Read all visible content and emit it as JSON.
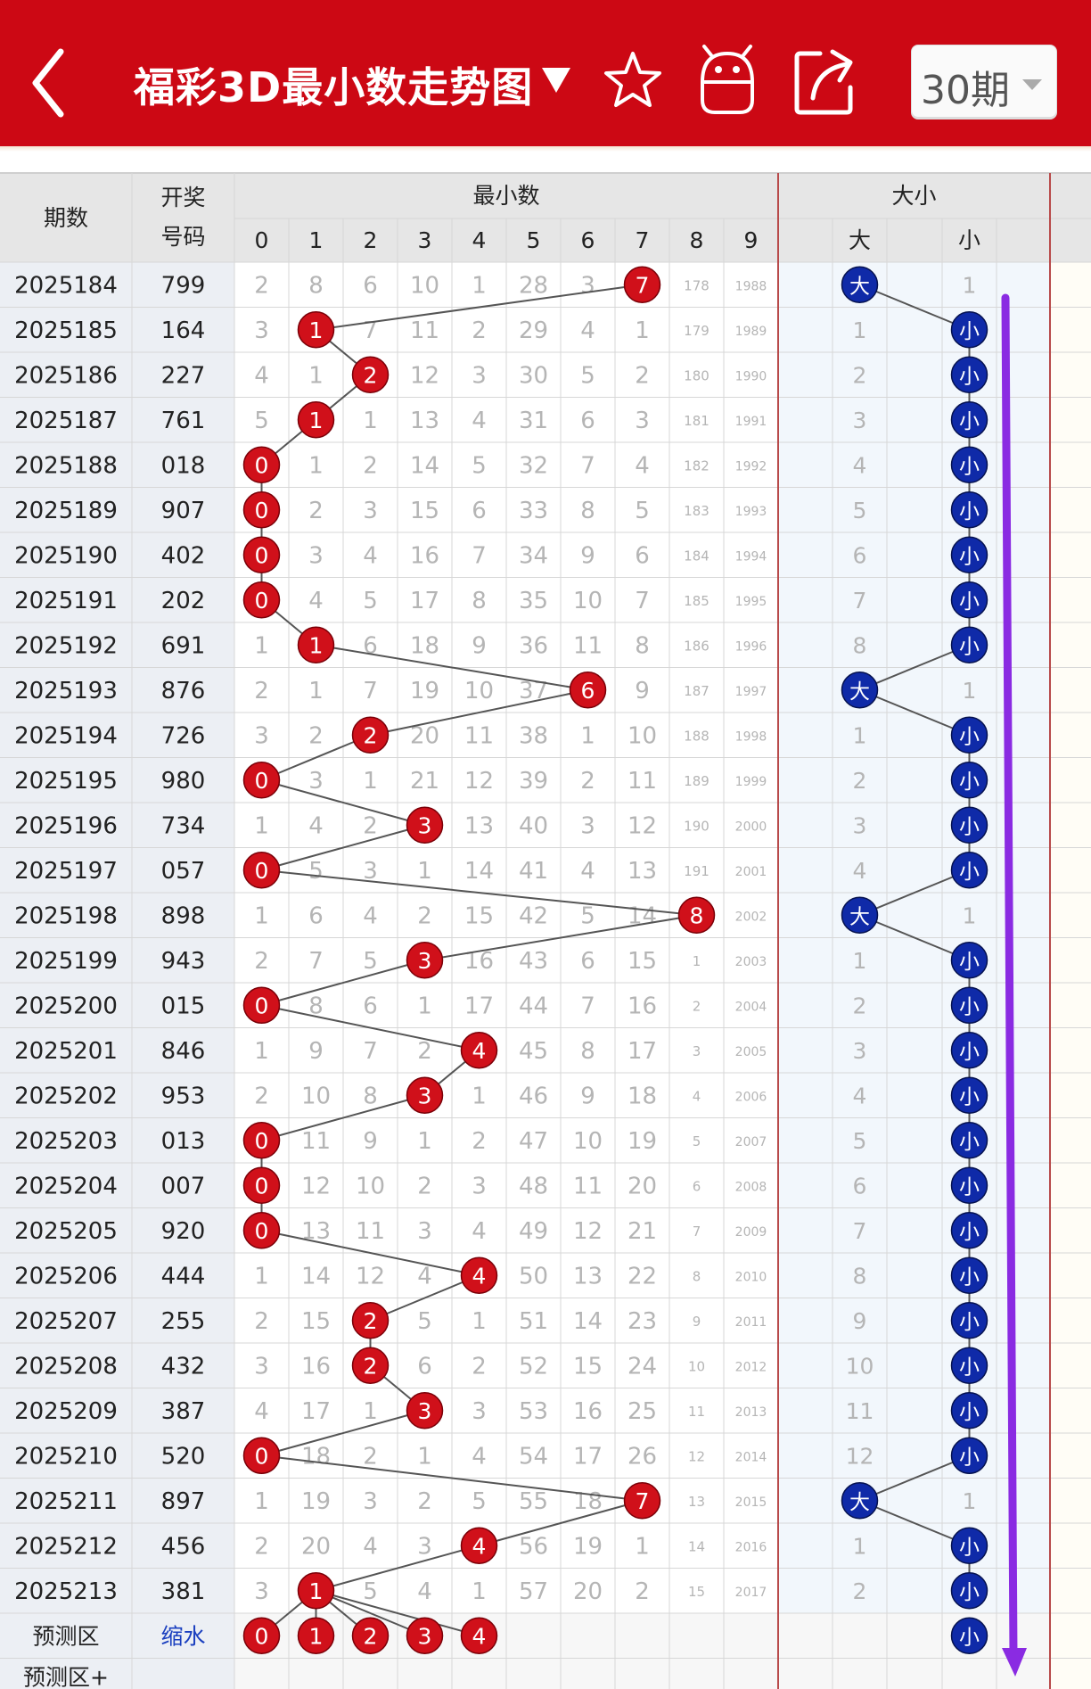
{
  "header": {
    "title": "福彩3D最小数走势图",
    "period_selector": "30期",
    "back_icon": "back-arrow-icon",
    "favorite_icon": "star-icon",
    "android_icon": "android-robot-icon",
    "share_icon": "share-icon",
    "dropdown_icon": "triangle-down-icon",
    "bg_color": "#cc0814"
  },
  "table": {
    "header": {
      "issue": "期数",
      "draw_line1": "开奖",
      "draw_line2": "号码",
      "min_group": "最小数",
      "size_group": "大小",
      "digit_cols": [
        "0",
        "1",
        "2",
        "3",
        "4",
        "5",
        "6",
        "7",
        "8",
        "9"
      ],
      "big": "大",
      "small": "小"
    },
    "rows": [
      {
        "issue": "2025184",
        "draw": "799",
        "min": 7,
        "miss": [
          "2",
          "8",
          "6",
          "10",
          "1",
          "28",
          "3",
          "7",
          "178",
          "1988"
        ],
        "size": "大",
        "sizemiss": [
          "大",
          "1"
        ]
      },
      {
        "issue": "2025185",
        "draw": "164",
        "min": 1,
        "miss": [
          "3",
          "1",
          "7",
          "11",
          "2",
          "29",
          "4",
          "1",
          "179",
          "1989"
        ],
        "size": "小",
        "sizemiss": [
          "1",
          "小"
        ]
      },
      {
        "issue": "2025186",
        "draw": "227",
        "min": 2,
        "miss": [
          "4",
          "1",
          "2",
          "12",
          "3",
          "30",
          "5",
          "2",
          "180",
          "1990"
        ],
        "size": "小",
        "sizemiss": [
          "2",
          "小"
        ]
      },
      {
        "issue": "2025187",
        "draw": "761",
        "min": 1,
        "miss": [
          "5",
          "1",
          "1",
          "13",
          "4",
          "31",
          "6",
          "3",
          "181",
          "1991"
        ],
        "size": "小",
        "sizemiss": [
          "3",
          "小"
        ]
      },
      {
        "issue": "2025188",
        "draw": "018",
        "min": 0,
        "miss": [
          "0",
          "1",
          "2",
          "14",
          "5",
          "32",
          "7",
          "4",
          "182",
          "1992"
        ],
        "size": "小",
        "sizemiss": [
          "4",
          "小"
        ]
      },
      {
        "issue": "2025189",
        "draw": "907",
        "min": 0,
        "miss": [
          "0",
          "2",
          "3",
          "15",
          "6",
          "33",
          "8",
          "5",
          "183",
          "1993"
        ],
        "size": "小",
        "sizemiss": [
          "5",
          "小"
        ]
      },
      {
        "issue": "2025190",
        "draw": "402",
        "min": 0,
        "miss": [
          "0",
          "3",
          "4",
          "16",
          "7",
          "34",
          "9",
          "6",
          "184",
          "1994"
        ],
        "size": "小",
        "sizemiss": [
          "6",
          "小"
        ]
      },
      {
        "issue": "2025191",
        "draw": "202",
        "min": 0,
        "miss": [
          "0",
          "4",
          "5",
          "17",
          "8",
          "35",
          "10",
          "7",
          "185",
          "1995"
        ],
        "size": "小",
        "sizemiss": [
          "7",
          "小"
        ]
      },
      {
        "issue": "2025192",
        "draw": "691",
        "min": 1,
        "miss": [
          "1",
          "1",
          "6",
          "18",
          "9",
          "36",
          "11",
          "8",
          "186",
          "1996"
        ],
        "size": "小",
        "sizemiss": [
          "8",
          "小"
        ]
      },
      {
        "issue": "2025193",
        "draw": "876",
        "min": 6,
        "miss": [
          "2",
          "1",
          "7",
          "19",
          "10",
          "37",
          "6",
          "9",
          "187",
          "1997"
        ],
        "size": "大",
        "sizemiss": [
          "大",
          "1"
        ]
      },
      {
        "issue": "2025194",
        "draw": "726",
        "min": 2,
        "miss": [
          "3",
          "2",
          "2",
          "20",
          "11",
          "38",
          "1",
          "10",
          "188",
          "1998"
        ],
        "size": "小",
        "sizemiss": [
          "1",
          "小"
        ]
      },
      {
        "issue": "2025195",
        "draw": "980",
        "min": 0,
        "miss": [
          "0",
          "3",
          "1",
          "21",
          "12",
          "39",
          "2",
          "11",
          "189",
          "1999"
        ],
        "size": "小",
        "sizemiss": [
          "2",
          "小"
        ]
      },
      {
        "issue": "2025196",
        "draw": "734",
        "min": 3,
        "miss": [
          "1",
          "4",
          "2",
          "3",
          "13",
          "40",
          "3",
          "12",
          "190",
          "2000"
        ],
        "size": "小",
        "sizemiss": [
          "3",
          "小"
        ]
      },
      {
        "issue": "2025197",
        "draw": "057",
        "min": 0,
        "miss": [
          "0",
          "5",
          "3",
          "1",
          "14",
          "41",
          "4",
          "13",
          "191",
          "2001"
        ],
        "size": "小",
        "sizemiss": [
          "4",
          "小"
        ]
      },
      {
        "issue": "2025198",
        "draw": "898",
        "min": 8,
        "miss": [
          "1",
          "6",
          "4",
          "2",
          "15",
          "42",
          "5",
          "14",
          "8",
          "2002"
        ],
        "size": "大",
        "sizemiss": [
          "大",
          "1"
        ]
      },
      {
        "issue": "2025199",
        "draw": "943",
        "min": 3,
        "miss": [
          "2",
          "7",
          "5",
          "3",
          "16",
          "43",
          "6",
          "15",
          "1",
          "2003"
        ],
        "size": "小",
        "sizemiss": [
          "1",
          "小"
        ]
      },
      {
        "issue": "2025200",
        "draw": "015",
        "min": 0,
        "miss": [
          "0",
          "8",
          "6",
          "1",
          "17",
          "44",
          "7",
          "16",
          "2",
          "2004"
        ],
        "size": "小",
        "sizemiss": [
          "2",
          "小"
        ]
      },
      {
        "issue": "2025201",
        "draw": "846",
        "min": 4,
        "miss": [
          "1",
          "9",
          "7",
          "2",
          "4",
          "45",
          "8",
          "17",
          "3",
          "2005"
        ],
        "size": "小",
        "sizemiss": [
          "3",
          "小"
        ]
      },
      {
        "issue": "2025202",
        "draw": "953",
        "min": 3,
        "miss": [
          "2",
          "10",
          "8",
          "3",
          "1",
          "46",
          "9",
          "18",
          "4",
          "2006"
        ],
        "size": "小",
        "sizemiss": [
          "4",
          "小"
        ]
      },
      {
        "issue": "2025203",
        "draw": "013",
        "min": 0,
        "miss": [
          "0",
          "11",
          "9",
          "1",
          "2",
          "47",
          "10",
          "19",
          "5",
          "2007"
        ],
        "size": "小",
        "sizemiss": [
          "5",
          "小"
        ]
      },
      {
        "issue": "2025204",
        "draw": "007",
        "min": 0,
        "miss": [
          "0",
          "12",
          "10",
          "2",
          "3",
          "48",
          "11",
          "20",
          "6",
          "2008"
        ],
        "size": "小",
        "sizemiss": [
          "6",
          "小"
        ]
      },
      {
        "issue": "2025205",
        "draw": "920",
        "min": 0,
        "miss": [
          "0",
          "13",
          "11",
          "3",
          "4",
          "49",
          "12",
          "21",
          "7",
          "2009"
        ],
        "size": "小",
        "sizemiss": [
          "7",
          "小"
        ]
      },
      {
        "issue": "2025206",
        "draw": "444",
        "min": 4,
        "miss": [
          "1",
          "14",
          "12",
          "4",
          "4",
          "50",
          "13",
          "22",
          "8",
          "2010"
        ],
        "size": "小",
        "sizemiss": [
          "8",
          "小"
        ]
      },
      {
        "issue": "2025207",
        "draw": "255",
        "min": 2,
        "miss": [
          "2",
          "15",
          "2",
          "5",
          "1",
          "51",
          "14",
          "23",
          "9",
          "2011"
        ],
        "size": "小",
        "sizemiss": [
          "9",
          "小"
        ]
      },
      {
        "issue": "2025208",
        "draw": "432",
        "min": 2,
        "miss": [
          "3",
          "16",
          "2",
          "6",
          "2",
          "52",
          "15",
          "24",
          "10",
          "2012"
        ],
        "size": "小",
        "sizemiss": [
          "10",
          "小"
        ]
      },
      {
        "issue": "2025209",
        "draw": "387",
        "min": 3,
        "miss": [
          "4",
          "17",
          "1",
          "3",
          "3",
          "53",
          "16",
          "25",
          "11",
          "2013"
        ],
        "size": "小",
        "sizemiss": [
          "11",
          "小"
        ]
      },
      {
        "issue": "2025210",
        "draw": "520",
        "min": 0,
        "miss": [
          "0",
          "18",
          "2",
          "1",
          "4",
          "54",
          "17",
          "26",
          "12",
          "2014"
        ],
        "size": "小",
        "sizemiss": [
          "12",
          "小"
        ]
      },
      {
        "issue": "2025211",
        "draw": "897",
        "min": 7,
        "miss": [
          "1",
          "19",
          "3",
          "2",
          "5",
          "55",
          "18",
          "7",
          "13",
          "2015"
        ],
        "size": "大",
        "sizemiss": [
          "大",
          "1"
        ]
      },
      {
        "issue": "2025212",
        "draw": "456",
        "min": 4,
        "miss": [
          "2",
          "20",
          "4",
          "3",
          "4",
          "56",
          "19",
          "1",
          "14",
          "2016"
        ],
        "size": "小",
        "sizemiss": [
          "1",
          "小"
        ]
      },
      {
        "issue": "2025213",
        "draw": "381",
        "min": 1,
        "miss": [
          "3",
          "1",
          "5",
          "4",
          "1",
          "57",
          "20",
          "2",
          "15",
          "2017"
        ],
        "size": "小",
        "sizemiss": [
          "2",
          "小"
        ]
      }
    ],
    "predict": {
      "label": "预测区",
      "draw": "缩水",
      "balls": [
        "0",
        "1",
        "2",
        "3",
        "4"
      ],
      "size": "小"
    },
    "predict_plus": "预测区+"
  },
  "colors": {
    "red_ball": "#d0101a",
    "blue_ball": "#0f2aa8",
    "arrow": "#8a2be2",
    "miss_text": "#b5b5b5",
    "header_bg": "#e6e6e6",
    "side_bg": "#eceff4",
    "size_bg": "#f2f7fc"
  }
}
